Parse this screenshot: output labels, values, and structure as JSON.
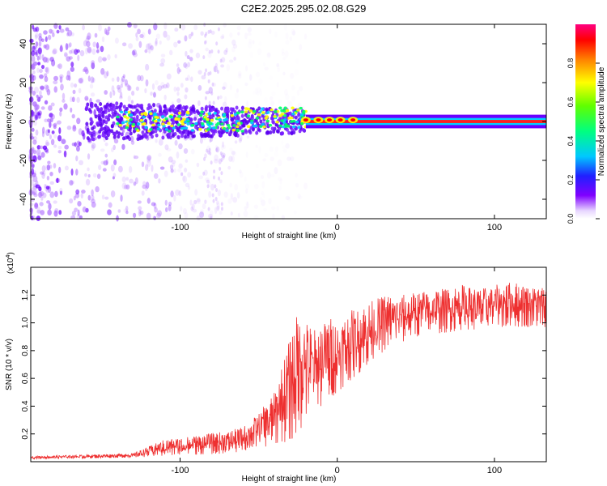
{
  "title": "C2E2.2025.295.02.08.G29",
  "chart_data": [
    {
      "type": "heatmap",
      "name": "spectrogram",
      "xlabel": "Height of straight line (km)",
      "ylabel": "Frequency (Hz)",
      "xlim": [
        -195,
        133
      ],
      "ylim": [
        -50,
        50
      ],
      "xticks": [
        -100,
        0,
        100
      ],
      "yticks": [
        -40,
        -20,
        0,
        20,
        40
      ],
      "colorbar": {
        "label": "Normalized spectral amplitude",
        "range": [
          0,
          1
        ],
        "ticks": [
          "0.0",
          "0.2",
          "0.4",
          "0.6",
          "0.8"
        ],
        "tick_values": [
          0,
          0.2,
          0.4,
          0.6,
          0.8
        ]
      },
      "features": {
        "scatter_region_x": [
          -195,
          -60
        ],
        "dense_core_x": [
          -160,
          -20
        ],
        "steady_tone_x": [
          -20,
          133
        ],
        "steady_tone_freq": 0,
        "core_colors": [
          "#6600ff",
          "#00ccff",
          "#00ff66",
          "#ffff00",
          "#ff0000"
        ]
      }
    },
    {
      "type": "line",
      "name": "snr",
      "xlabel": "Height of straight line (km)",
      "ylabel": "SNR (10 * v/v)",
      "scale_label": "(x10",
      "scale_exp": "4",
      "xlim": [
        -195,
        133
      ],
      "ylim": [
        0,
        1.4
      ],
      "xticks": [
        -100,
        0,
        100
      ],
      "yticks": [
        "0.2",
        "0.4",
        "0.6",
        "0.8",
        "1.0",
        "1.2"
      ],
      "ytick_values": [
        0.2,
        0.4,
        0.6,
        0.8,
        1.0,
        1.2
      ],
      "color": "#ee3030",
      "envelope": {
        "x": [
          -195,
          -160,
          -130,
          -110,
          -90,
          -70,
          -60,
          -50,
          -40,
          -30,
          -25,
          -20,
          -15,
          -10,
          -5,
          0,
          10,
          20,
          30,
          40,
          50,
          60,
          70,
          80,
          90,
          100,
          110,
          120,
          133
        ],
        "base": [
          0.02,
          0.025,
          0.03,
          0.04,
          0.05,
          0.06,
          0.07,
          0.1,
          0.12,
          0.15,
          0.2,
          0.3,
          0.35,
          0.4,
          0.45,
          0.5,
          0.6,
          0.7,
          0.8,
          0.85,
          0.9,
          0.92,
          0.93,
          0.95,
          0.95,
          0.96,
          0.97,
          0.97,
          0.97
        ],
        "peak": [
          0.04,
          0.05,
          0.06,
          0.16,
          0.19,
          0.22,
          0.25,
          0.35,
          0.5,
          0.9,
          1.1,
          1.05,
          0.95,
          1.0,
          1.05,
          1.0,
          1.1,
          1.15,
          1.2,
          1.2,
          1.22,
          1.25,
          1.25,
          1.28,
          1.25,
          1.27,
          1.3,
          1.28,
          1.26
        ]
      }
    }
  ]
}
